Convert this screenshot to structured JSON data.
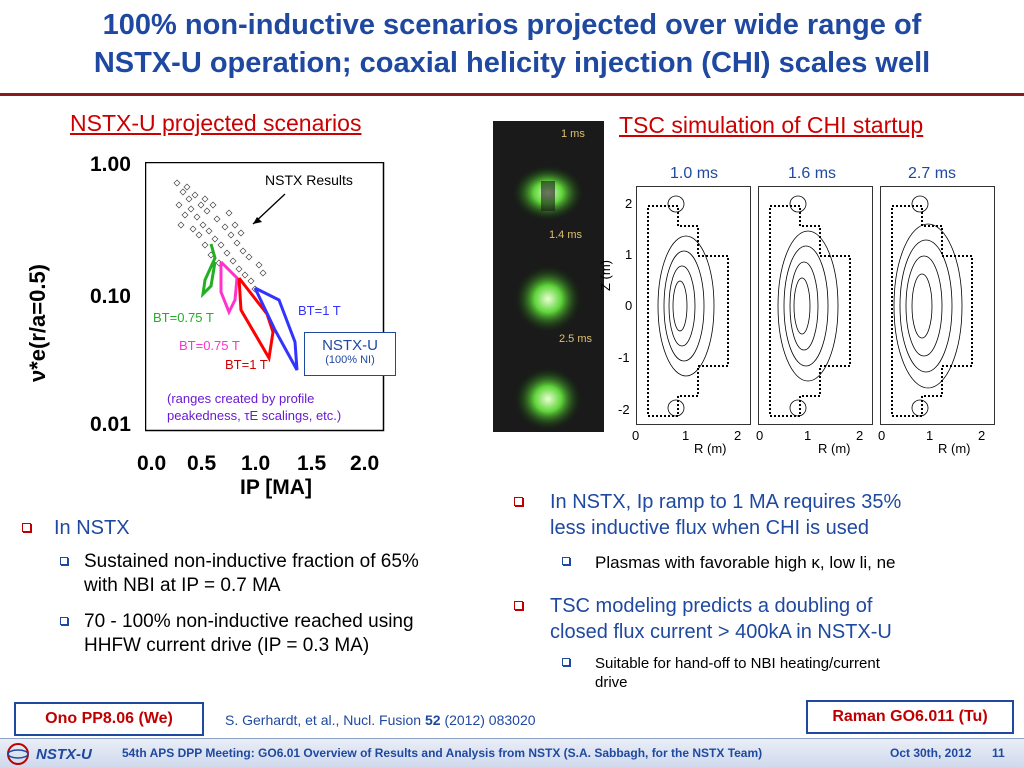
{
  "title": {
    "line1": "100% non-inductive scenarios projected over wide range of",
    "line2": "NSTX-U operation; coaxial helicity injection (CHI) scales well"
  },
  "left_section": {
    "heading": "NSTX-U projected scenarios",
    "chart": {
      "y_axis_label": "ν*e(r/a=0.5)",
      "y_ticks": [
        "1.00",
        "0.10",
        "0.01"
      ],
      "x_ticks": [
        "0.0",
        "0.5",
        "1.0",
        "1.5",
        "2.0"
      ],
      "x_axis_label": "IP [MA]",
      "annotation_nstx": "NSTX Results",
      "label_bt_075_green": "BT=0.75 T",
      "label_bt_1_blue": "BT=1 T",
      "label_bt_075_pink": "BT=0.75 T",
      "label_bt_1_red": "BT=1 T",
      "nstxu_box_line1": "NSTX-U",
      "nstxu_box_line2": "(100% NI)",
      "note_line1": "(ranges created by profile",
      "note_line2": "peakedness, τE scalings, etc.)"
    }
  },
  "right_section": {
    "heading": "TSC simulation of CHI startup",
    "camera_labels": [
      "1 ms",
      "1.4 ms",
      "2.5 ms"
    ],
    "frame_times": [
      "1.0 ms",
      "1.6 ms",
      "2.7 ms"
    ],
    "z_axis_label": "Z (m)",
    "z_ticks": [
      "2",
      "1",
      "0",
      "-1",
      "-2"
    ],
    "r_ticks": [
      "0",
      "1",
      "2"
    ],
    "r_axis_label": "R (m)"
  },
  "bullets_left": {
    "main": "In NSTX",
    "sub1_line1": "Sustained non-inductive fraction of 65%",
    "sub1_line2": "with NBI at IP = 0.7 MA",
    "sub2_line1": "70 - 100% non-inductive reached using",
    "sub2_line2": "HHFW current drive (IP = 0.3 MA)"
  },
  "bullets_right": {
    "b1_line1": "In NSTX, Ip ramp to 1 MA requires 35%",
    "b1_line2": "less inductive flux when CHI is used",
    "b1_sub": "Plasmas with favorable high κ, low li, ne",
    "b2_line1": "TSC modeling predicts a doubling of",
    "b2_line2": "closed flux current > 400kA in NSTX-U",
    "b2_sub_line1": "Suitable for hand-off to NBI heating/current",
    "b2_sub_line2": "drive"
  },
  "refs": {
    "left_box": "Ono PP8.06 (We)",
    "citation_pre": "S. Gerhardt, et al., Nucl. Fusion ",
    "citation_vol": "52",
    "citation_post": " (2012) 083020",
    "right_box": "Raman GO6.011 (Tu)"
  },
  "footer": {
    "logo": "NSTX-U",
    "meeting": "54th APS DPP Meeting: GO6.01 Overview of Results and Analysis from NSTX (S.A. Sabbagh, for the NSTX Team)",
    "date": "Oct 30th, 2012",
    "page": "11"
  },
  "colors": {
    "title_blue": "#1f49a0",
    "heading_red": "#cc0000",
    "green_series": "#22b022",
    "pink_series": "#ff33cc",
    "red_series": "#ff0000",
    "blue_series": "#3333ff"
  }
}
